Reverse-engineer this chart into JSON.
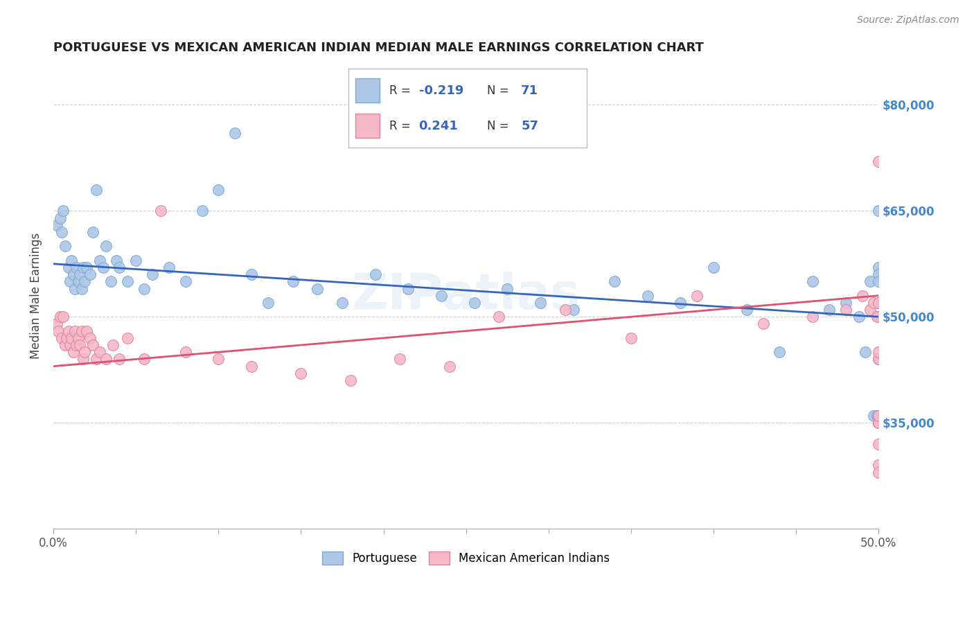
{
  "title": "PORTUGUESE VS MEXICAN AMERICAN INDIAN MEDIAN MALE EARNINGS CORRELATION CHART",
  "source": "Source: ZipAtlas.com",
  "ylabel": "Median Male Earnings",
  "yticks": [
    35000,
    50000,
    65000,
    80000
  ],
  "ytick_labels": [
    "$35,000",
    "$50,000",
    "$65,000",
    "$80,000"
  ],
  "xmin": 0.0,
  "xmax": 0.5,
  "ymin": 20000,
  "ymax": 86000,
  "blue_color": "#aec6e8",
  "blue_edge": "#7aaad0",
  "pink_color": "#f5b8c8",
  "pink_edge": "#e080a0",
  "blue_line_color": "#3366bb",
  "pink_line_color": "#e05070",
  "legend_label_blue": "Portuguese",
  "legend_label_pink": "Mexican American Indians",
  "watermark": "ZIPatlas",
  "blue_scatter_x": [
    0.002,
    0.004,
    0.005,
    0.006,
    0.007,
    0.009,
    0.01,
    0.011,
    0.012,
    0.013,
    0.014,
    0.015,
    0.016,
    0.017,
    0.018,
    0.019,
    0.02,
    0.022,
    0.024,
    0.026,
    0.028,
    0.03,
    0.032,
    0.035,
    0.038,
    0.04,
    0.045,
    0.05,
    0.055,
    0.06,
    0.07,
    0.08,
    0.09,
    0.1,
    0.11,
    0.12,
    0.13,
    0.145,
    0.16,
    0.175,
    0.195,
    0.215,
    0.235,
    0.255,
    0.275,
    0.295,
    0.315,
    0.34,
    0.36,
    0.38,
    0.4,
    0.42,
    0.44,
    0.46,
    0.47,
    0.48,
    0.488,
    0.492,
    0.495,
    0.497,
    0.499,
    0.5,
    0.5,
    0.5,
    0.5,
    0.5,
    0.5,
    0.5,
    0.5,
    0.5,
    0.5
  ],
  "blue_scatter_y": [
    63000,
    64000,
    62000,
    65000,
    60000,
    57000,
    55000,
    58000,
    56000,
    54000,
    57000,
    55000,
    56000,
    54000,
    57000,
    55000,
    57000,
    56000,
    62000,
    68000,
    58000,
    57000,
    60000,
    55000,
    58000,
    57000,
    55000,
    58000,
    54000,
    56000,
    57000,
    55000,
    65000,
    68000,
    76000,
    56000,
    52000,
    55000,
    54000,
    52000,
    56000,
    54000,
    53000,
    52000,
    54000,
    52000,
    51000,
    55000,
    53000,
    52000,
    57000,
    51000,
    45000,
    55000,
    51000,
    52000,
    50000,
    45000,
    55000,
    36000,
    36000,
    65000,
    57000,
    56000,
    55000,
    52000,
    50000,
    44000,
    35000,
    35000,
    36000
  ],
  "pink_scatter_x": [
    0.002,
    0.003,
    0.004,
    0.005,
    0.006,
    0.007,
    0.008,
    0.009,
    0.01,
    0.011,
    0.012,
    0.013,
    0.014,
    0.015,
    0.016,
    0.017,
    0.018,
    0.019,
    0.02,
    0.022,
    0.024,
    0.026,
    0.028,
    0.032,
    0.036,
    0.04,
    0.045,
    0.055,
    0.065,
    0.08,
    0.1,
    0.12,
    0.15,
    0.18,
    0.21,
    0.24,
    0.27,
    0.31,
    0.35,
    0.39,
    0.43,
    0.46,
    0.48,
    0.49,
    0.495,
    0.497,
    0.499,
    0.5,
    0.5,
    0.5,
    0.5,
    0.5,
    0.5,
    0.5,
    0.5,
    0.5,
    0.5
  ],
  "pink_scatter_y": [
    49000,
    48000,
    50000,
    47000,
    50000,
    46000,
    47000,
    48000,
    46000,
    47000,
    45000,
    48000,
    46000,
    47000,
    46000,
    48000,
    44000,
    45000,
    48000,
    47000,
    46000,
    44000,
    45000,
    44000,
    46000,
    44000,
    47000,
    44000,
    65000,
    45000,
    44000,
    43000,
    42000,
    41000,
    44000,
    43000,
    50000,
    51000,
    47000,
    53000,
    49000,
    50000,
    51000,
    53000,
    51000,
    52000,
    50000,
    52000,
    44000,
    45000,
    35000,
    35000,
    36000,
    32000,
    29000,
    28000,
    72000
  ]
}
